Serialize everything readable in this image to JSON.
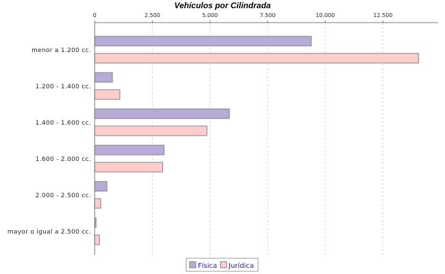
{
  "chart_data": {
    "type": "bar",
    "orientation": "horizontal",
    "title": "Vehículos por Cilindrada",
    "xlabel": "",
    "ylabel": "",
    "categories": [
      "menor a 1.200 cc.",
      "1.200 - 1.400 cc.",
      "1.400 - 1.600 cc.",
      "1.600 - 2.000 cc.",
      "2.000 - 2.500 cc.",
      "mayor o igual a 2.500 cc."
    ],
    "series": [
      {
        "name": "Física",
        "color": "#b7acd8",
        "values": [
          9394,
          767,
          5840,
          3009,
          531,
          59
        ]
      },
      {
        "name": "Jurídica",
        "color": "#ffcccc",
        "values": [
          14044,
          1091,
          4867,
          2950,
          265,
          206
        ]
      }
    ],
    "xlim": [
      0,
      14800
    ],
    "ticks": [
      0,
      2500,
      5000,
      7500,
      10000,
      12500
    ],
    "tick_labels": [
      "0",
      "2.500",
      "5.000",
      "7.500",
      "10.000",
      "12.500"
    ],
    "axis_position": "top",
    "grid": true,
    "legend_position": "bottom"
  }
}
